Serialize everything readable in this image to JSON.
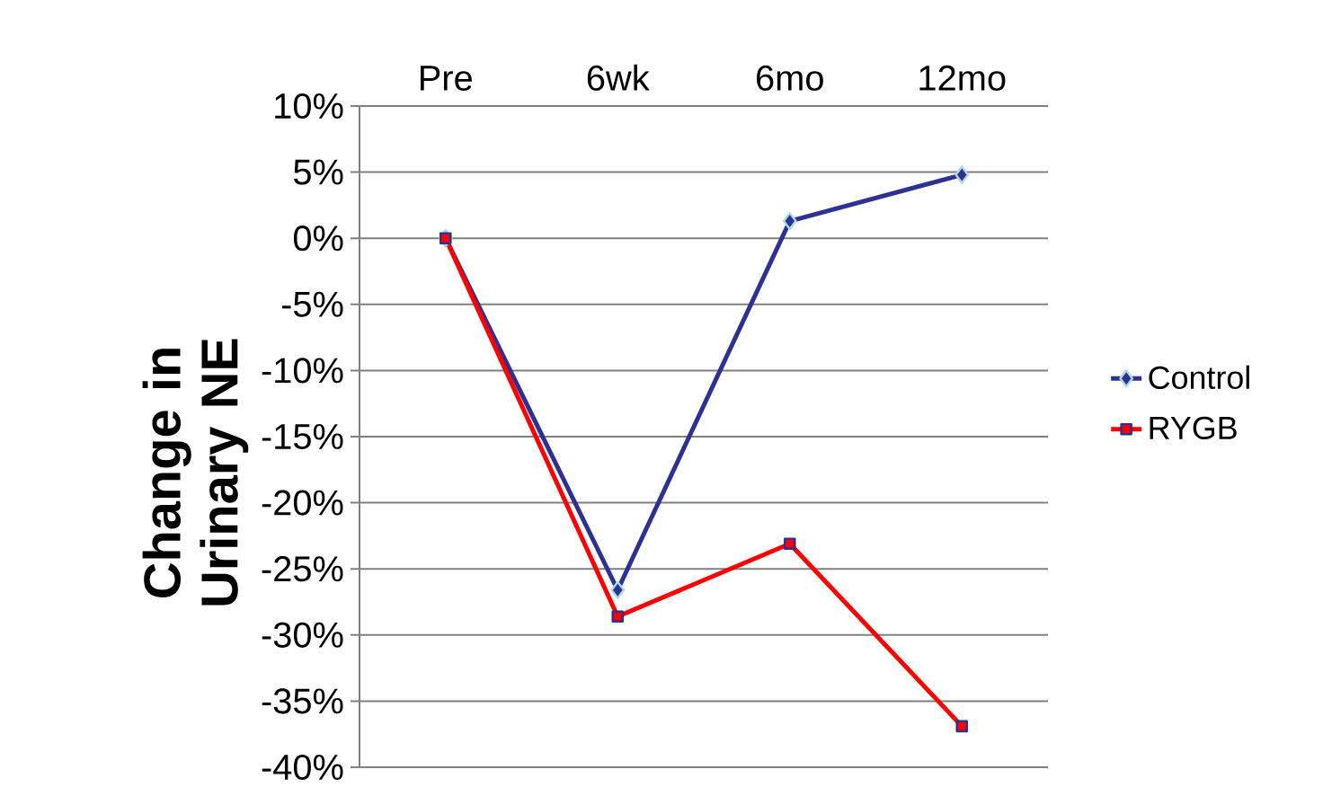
{
  "chart_data": {
    "type": "line",
    "ylabel": "Change in Urinary NE",
    "categories": [
      "Pre",
      "6wk",
      "6mo",
      "12mo"
    ],
    "series": [
      {
        "name": "Control",
        "color": "#2e3192",
        "marker": "diamond",
        "values": [
          0,
          -26.6,
          1.3,
          4.8
        ]
      },
      {
        "name": "RYGB",
        "color": "#ff0000",
        "marker": "square",
        "values": [
          0,
          -28.6,
          -23.1,
          -36.9
        ]
      }
    ],
    "ylim": [
      -40,
      10
    ],
    "yticks": [
      {
        "value": -40,
        "label": "-40%"
      },
      {
        "value": -35,
        "label": "-35%"
      },
      {
        "value": -30,
        "label": "-30%"
      },
      {
        "value": -25,
        "label": "-25%"
      },
      {
        "value": -20,
        "label": "-20%"
      },
      {
        "value": -15,
        "label": "-15%"
      },
      {
        "value": -10,
        "label": "-10%"
      },
      {
        "value": -5,
        "label": "-5%"
      },
      {
        "value": 0,
        "label": "0%"
      },
      {
        "value": 5,
        "label": "5%"
      },
      {
        "value": 10,
        "label": "10%"
      }
    ],
    "grid": "y",
    "legend": "right"
  }
}
